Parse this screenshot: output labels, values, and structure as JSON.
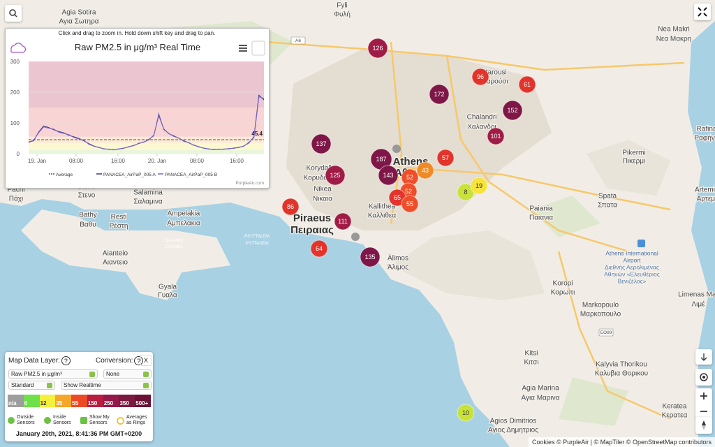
{
  "map": {
    "places": [
      {
        "name": "Fyli",
        "local": "Φυλή"
      },
      {
        "name": "Agia Sotira",
        "local": "Αγια Σωτηρα"
      },
      {
        "name": "Nea Makri",
        "local": "Νεα Μακρη"
      },
      {
        "name": "Marousi",
        "local": "Μαρούσι"
      },
      {
        "name": "Chalandri",
        "local": "Χαλανδρι"
      },
      {
        "name": "Rafina",
        "local": "Ραφήνα"
      },
      {
        "name": "Pikermi",
        "local": "Πικερμι"
      },
      {
        "name": "Korydallos",
        "local": "Κορυδαλλός"
      },
      {
        "name": "Nikea",
        "local": "Νικαια"
      },
      {
        "name": "Kallithea",
        "local": "Καλλιθεα"
      },
      {
        "name": "Paiania",
        "local": "Παιανια"
      },
      {
        "name": "Spata",
        "local": "Σπατα"
      },
      {
        "name": "Artemis",
        "local": "Αρτεμι"
      },
      {
        "name": "Pachi",
        "local": "Πάχι"
      },
      {
        "name": "Steno",
        "local": "Στενο"
      },
      {
        "name": "Salamina",
        "local": "Σαλαμινα"
      },
      {
        "name": "Ampelakia",
        "local": "Αμπελακια"
      },
      {
        "name": "Bathy",
        "local": "Βαθυ"
      },
      {
        "name": "Resti",
        "local": "Ρέστη"
      },
      {
        "name": "Aianteio",
        "local": "Αιαντειο"
      },
      {
        "name": "Álimos",
        "local": "Άλιμος"
      },
      {
        "name": "Koropi",
        "local": "Κορωπι"
      },
      {
        "name": "Gyala",
        "local": "Γυαλα"
      },
      {
        "name": "Markopoulo",
        "local": "Μαρκοπουλο"
      },
      {
        "name": "Limenas Mar",
        "local": "Λιμέ"
      },
      {
        "name": "Kitsi",
        "local": "Κιτσι"
      },
      {
        "name": "Kalyvia Thorikou",
        "local": "Καλυβια Θορικου"
      },
      {
        "name": "Agia Marina",
        "local": "Αγια Μαρινα"
      },
      {
        "name": "Keratea",
        "local": "Κερατεα"
      },
      {
        "name": "Agios Dimitrios",
        "local": "Αγιος Δημητριος"
      }
    ],
    "cities": [
      {
        "name": "Athens",
        "local": "Αθηνα"
      },
      {
        "name": "Piraeus",
        "local": "Πειραιας"
      }
    ],
    "sea_labels": [
      {
        "name": "SALAMIS",
        "local": "ΣΑΛΑΜΙΣ"
      },
      {
        "name": "PSYTTALEIA",
        "local": "ΨΥΤΤΑΛΕΙΑ"
      }
    ],
    "airport": [
      "Athens International",
      "Airport",
      "Διεθνής Αερολιμένας",
      "Αθηνών «Ελευθέριος",
      "Βενιζέλος»"
    ],
    "roads": [
      "A6",
      "EO89"
    ],
    "sensors": [
      126,
      96,
      61,
      172,
      152,
      101,
      137,
      187,
      57,
      143,
      52,
      43,
      125,
      52,
      65,
      55,
      8,
      19,
      86,
      111,
      64,
      135,
      10
    ]
  },
  "chart": {
    "hint": "Click and drag to zoom in. Hold down shift key and drag to pan.",
    "title": "Raw PM2.5 in μg/m³ Real Time",
    "ylim": [
      0,
      300
    ],
    "yticks": [
      0,
      100,
      200,
      300
    ],
    "xticks": [
      "19. Jan",
      "08:00",
      "16:00",
      "20. Jan",
      "08:00",
      "16:00"
    ],
    "bands": [
      {
        "from": 0,
        "to": 12,
        "color": "#eaf6dc"
      },
      {
        "from": 12,
        "to": 35,
        "color": "#fbf8d2"
      },
      {
        "from": 35,
        "to": 55,
        "color": "#fde9d4"
      },
      {
        "from": 55,
        "to": 150,
        "color": "#f9d4d4"
      },
      {
        "from": 150,
        "to": 300,
        "color": "#ebc6d1"
      }
    ],
    "average": {
      "name": "Average",
      "value": 45.4,
      "color": "#555555"
    },
    "series": [
      {
        "name": "PANACEA_AirPaP_005 A",
        "color": "#3b3b7c",
        "values": [
          38,
          42,
          70,
          90,
          85,
          78,
          72,
          68,
          60,
          55,
          50,
          42,
          33,
          25,
          20,
          16,
          14,
          13,
          15,
          18,
          22,
          27,
          33,
          38,
          45,
          60,
          125,
          80,
          65,
          58,
          50,
          42,
          35,
          28,
          22,
          18,
          15,
          14,
          14,
          15,
          16,
          18,
          20,
          25,
          35,
          55,
          190,
          175
        ]
      },
      {
        "name": "PANACEA_AirPaP_005 B",
        "color": "#7b68c8",
        "values": [
          36,
          44,
          68,
          87,
          83,
          80,
          70,
          66,
          62,
          53,
          48,
          44,
          31,
          24,
          21,
          15,
          15,
          12,
          16,
          17,
          23,
          26,
          34,
          37,
          47,
          58,
          130,
          78,
          66,
          56,
          51,
          40,
          36,
          27,
          23,
          17,
          16,
          13,
          15,
          14,
          17,
          17,
          21,
          24,
          37,
          52,
          185,
          180
        ]
      }
    ],
    "credit": "PurpleAir.com"
  },
  "panel": {
    "layer_label": "Map Data Layer:",
    "conversion_label": "Conversion:",
    "help": "?",
    "close": "X",
    "layer": "Raw PM2.5 in µg/m³",
    "conversion": "None",
    "mode": "Standard",
    "time_mode": "Show Realtime",
    "scale": [
      {
        "label": "n/a",
        "color": "#9e9e9e"
      },
      {
        "label": "0",
        "color": "#6ee04a"
      },
      {
        "label": "12",
        "color": "#f4f03c"
      },
      {
        "label": "35",
        "color": "#f5a72c"
      },
      {
        "label": "55",
        "color": "#ec4a26"
      },
      {
        "label": "150",
        "color": "#b81e42"
      },
      {
        "label": "250",
        "color": "#931a4a"
      },
      {
        "label": "350",
        "color": "#7a1a40"
      },
      {
        "label": "500+",
        "color": "#6a1334"
      }
    ],
    "options": [
      "Outside Sensors",
      "Inside Sensors",
      "Show My Sensors",
      "Averages as Rings"
    ],
    "timestamp": "January 20th, 2021, 8:41:36 PM GMT+0200"
  },
  "attribution": "Cookies © PurpleAir | © MapTiler © OpenStreetMap contributors"
}
